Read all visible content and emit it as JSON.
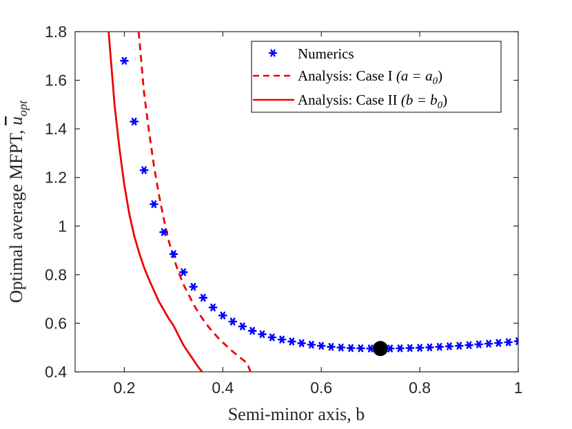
{
  "chart_data": {
    "type": "line",
    "title": "",
    "xlabel": "Semi-minor axis, b",
    "ylabel": "Optimal average MFPT, ",
    "ylabel_symbol": "u",
    "ylabel_subscript": "opt",
    "xlim": [
      0.1,
      1.0
    ],
    "ylim": [
      0.4,
      1.8
    ],
    "xticks": [
      0.2,
      0.4,
      0.6,
      0.8,
      1.0
    ],
    "xtick_labels": [
      "0.2",
      "0.4",
      "0.6",
      "0.8",
      "1"
    ],
    "yticks": [
      0.4,
      0.6,
      0.8,
      1.0,
      1.2,
      1.4,
      1.6,
      1.8
    ],
    "ytick_labels": [
      "0.4",
      "0.6",
      "0.8",
      "1",
      "1.2",
      "1.4",
      "1.6",
      "1.8"
    ],
    "grid": false,
    "legend_position": "top-right",
    "series": [
      {
        "name": "Numerics",
        "style": "markers",
        "marker": "asterisk",
        "color": "#0000ff",
        "x": [
          0.2,
          0.22,
          0.24,
          0.26,
          0.28,
          0.3,
          0.32,
          0.34,
          0.36,
          0.38,
          0.4,
          0.42,
          0.44,
          0.46,
          0.48,
          0.5,
          0.52,
          0.54,
          0.56,
          0.58,
          0.6,
          0.62,
          0.64,
          0.66,
          0.68,
          0.7,
          0.72,
          0.74,
          0.76,
          0.78,
          0.8,
          0.82,
          0.84,
          0.86,
          0.88,
          0.9,
          0.92,
          0.94,
          0.96,
          0.98,
          1.0
        ],
        "y": [
          1.68,
          1.43,
          1.23,
          1.09,
          0.975,
          0.885,
          0.81,
          0.75,
          0.705,
          0.665,
          0.632,
          0.607,
          0.587,
          0.569,
          0.555,
          0.542,
          0.533,
          0.525,
          0.518,
          0.512,
          0.507,
          0.503,
          0.5,
          0.498,
          0.497,
          0.496,
          0.496,
          0.496,
          0.497,
          0.498,
          0.499,
          0.501,
          0.503,
          0.505,
          0.507,
          0.51,
          0.513,
          0.516,
          0.519,
          0.522,
          0.526
        ]
      },
      {
        "name": "Analysis: Case I ",
        "math": "(a = a",
        "math_sub": "0",
        "math_end": ")",
        "style": "dashed",
        "color": "#ee0000",
        "x": [
          0.229,
          0.24,
          0.25,
          0.26,
          0.27,
          0.28,
          0.29,
          0.3,
          0.31,
          0.32,
          0.33,
          0.34,
          0.35,
          0.36,
          0.37,
          0.38,
          0.39,
          0.4,
          0.41,
          0.42,
          0.43,
          0.44,
          0.45,
          0.456
        ],
        "y": [
          1.8,
          1.55,
          1.39,
          1.25,
          1.13,
          1.03,
          0.94,
          0.87,
          0.81,
          0.76,
          0.72,
          0.68,
          0.645,
          0.615,
          0.588,
          0.563,
          0.541,
          0.521,
          0.502,
          0.484,
          0.467,
          0.451,
          0.435,
          0.4
        ]
      },
      {
        "name": "Analysis: Case II ",
        "math": "(b = b",
        "math_sub": "0",
        "math_end": ")",
        "style": "solid",
        "color": "#ee0000",
        "x": [
          0.168,
          0.18,
          0.19,
          0.2,
          0.21,
          0.22,
          0.23,
          0.24,
          0.25,
          0.26,
          0.27,
          0.28,
          0.29,
          0.3,
          0.31,
          0.32,
          0.33,
          0.34,
          0.35,
          0.358
        ],
        "y": [
          1.8,
          1.5,
          1.32,
          1.17,
          1.05,
          0.96,
          0.89,
          0.83,
          0.78,
          0.735,
          0.69,
          0.655,
          0.62,
          0.59,
          0.55,
          0.51,
          0.48,
          0.45,
          0.42,
          0.4
        ]
      }
    ],
    "highlight_point": {
      "x": 0.72,
      "y": 0.496,
      "color": "#000000"
    }
  }
}
